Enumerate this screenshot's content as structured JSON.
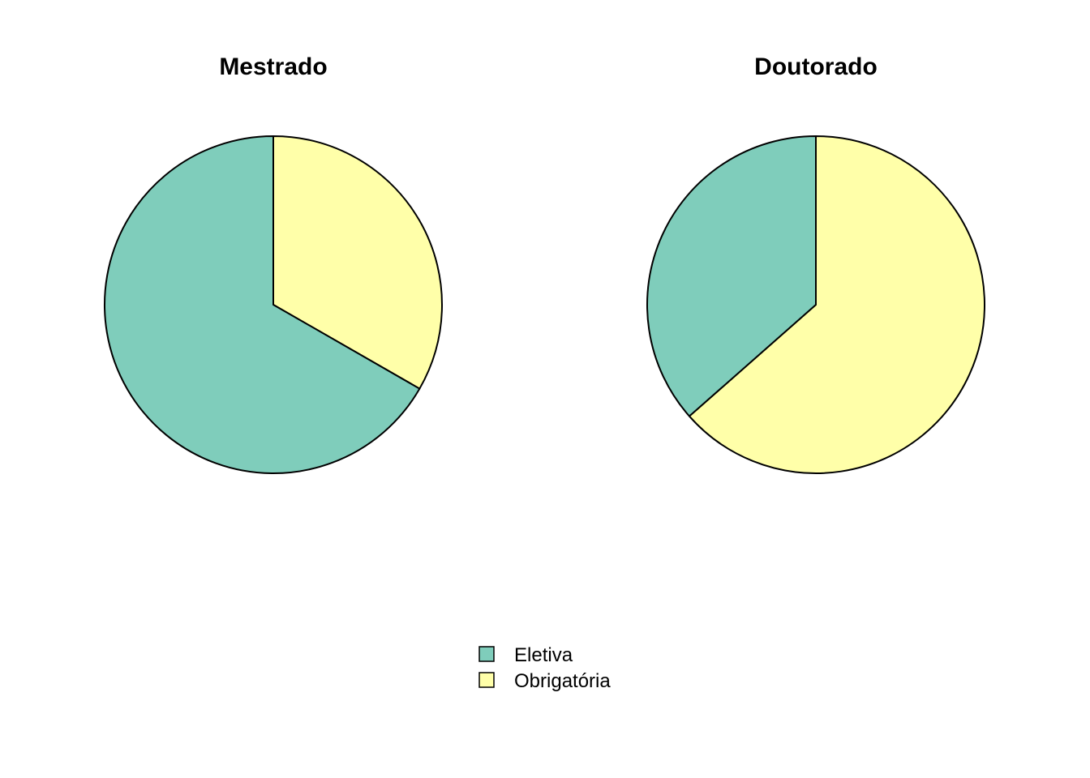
{
  "chart_data": [
    {
      "type": "pie",
      "title": "Mestrado",
      "start_angle_deg": 90,
      "direction": "clockwise",
      "slices": [
        {
          "label": "Obrigatória",
          "value": 33.3,
          "color": "#FFFFA9"
        },
        {
          "label": "Eletiva",
          "value": 66.7,
          "color": "#7FCDBB"
        }
      ]
    },
    {
      "type": "pie",
      "title": "Doutorado",
      "start_angle_deg": 90,
      "direction": "clockwise",
      "slices": [
        {
          "label": "Obrigatória",
          "value": 63.5,
          "color": "#FFFFA9"
        },
        {
          "label": "Eletiva",
          "value": 36.5,
          "color": "#7FCDBB"
        }
      ]
    }
  ],
  "legend": {
    "placement": "bottom-center",
    "items": [
      {
        "label": "Eletiva",
        "color": "#7FCDBB"
      },
      {
        "label": "Obrigatória",
        "color": "#FFFFA9"
      }
    ]
  }
}
